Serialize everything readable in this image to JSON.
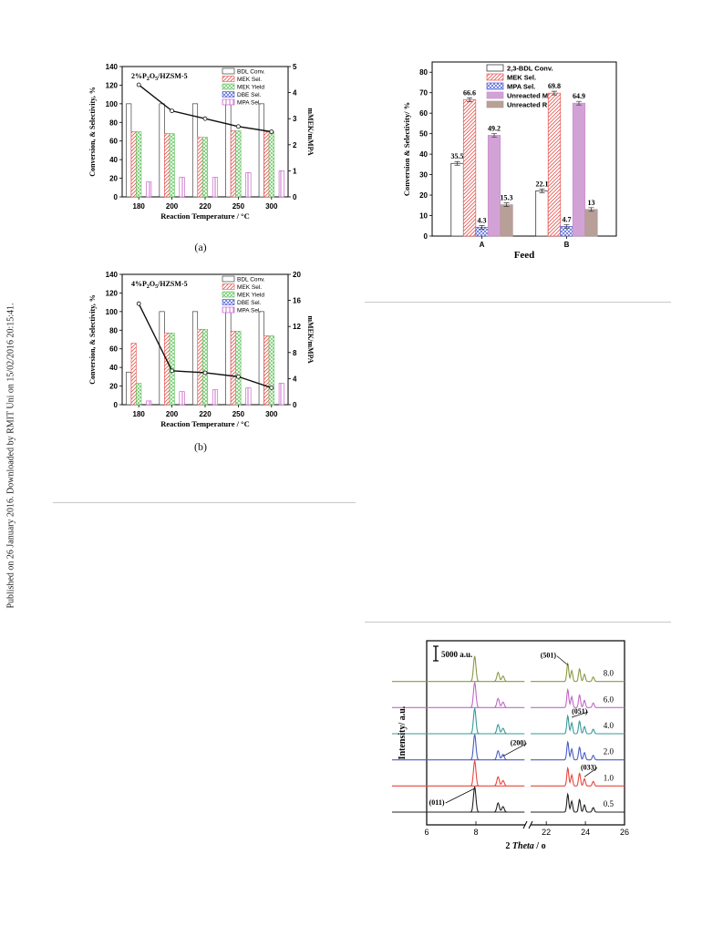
{
  "sidebar": {
    "text": "Published on 26 January 2016. Downloaded by RMIT Uni on 15/02/2016 20:15:41."
  },
  "colors": {
    "bdl": "#555555",
    "mek_sel": "#e8554e",
    "mek_yield": "#5fc25a",
    "dbe": "#4a5bd4",
    "mpa": "#c24fc2",
    "unreacted_m": "#c890cc",
    "unreacted_r": "#b09a94"
  },
  "captions": {
    "a": "(a)",
    "b": "(b)"
  },
  "chart_data": [
    {
      "type": "bar",
      "panel": "(a)",
      "annotation": "2%P2O5/HZSM-5",
      "categories": [
        "180",
        "200",
        "220",
        "250",
        "300"
      ],
      "xlabel": "Reaction Temperature / °C",
      "ylabel": "Conversion, & Selectivity, %",
      "y2label": "mMEK/mMPA",
      "ylim": [
        0,
        140
      ],
      "y2lim": [
        0,
        5
      ],
      "yticks": [
        0,
        20,
        40,
        60,
        80,
        100,
        120,
        140
      ],
      "y2ticks": [
        0,
        1,
        2,
        3,
        4,
        5
      ],
      "legend": [
        "BDL Conv.",
        "MEK Sel.",
        "MEK Yield",
        "DBE Sel.",
        "MPA Sel."
      ],
      "series": [
        {
          "name": "BDL Conv.",
          "values": [
            100,
            100,
            100,
            100,
            100
          ]
        },
        {
          "name": "MEK Sel.",
          "values": [
            70,
            68,
            64,
            71,
            70
          ]
        },
        {
          "name": "MEK Yield",
          "values": [
            70,
            68,
            64,
            71,
            70
          ]
        },
        {
          "name": "DBE Sel.",
          "values": [
            0,
            0,
            0,
            0,
            0
          ]
        },
        {
          "name": "MPA Sel.",
          "values": [
            16,
            21,
            21,
            26,
            28
          ]
        }
      ],
      "line": {
        "axis": "right",
        "values": [
          4.3,
          3.3,
          3.0,
          2.7,
          2.5
        ]
      }
    },
    {
      "type": "bar",
      "panel": "(b)",
      "annotation": "4%P2O5/HZSM-5",
      "categories": [
        "180",
        "200",
        "220",
        "250",
        "300"
      ],
      "xlabel": "Reaction Temperature / °C",
      "ylabel": "Conversion, & Selectivity, %",
      "y2label": "mMEK/mMPA",
      "ylim": [
        0,
        140
      ],
      "y2lim": [
        0,
        20
      ],
      "yticks": [
        0,
        20,
        40,
        60,
        80,
        100,
        120,
        140
      ],
      "y2ticks": [
        0,
        4,
        8,
        12,
        16,
        20
      ],
      "legend": [
        "BDL Conv.",
        "MEK Sel.",
        "MEK Yield",
        "DBE Sel.",
        "MPA Sel."
      ],
      "series": [
        {
          "name": "BDL Conv.",
          "values": [
            35,
            100,
            100,
            100,
            100
          ]
        },
        {
          "name": "MEK Sel.",
          "values": [
            66,
            77,
            81,
            79,
            74
          ]
        },
        {
          "name": "MEK Yield",
          "values": [
            23,
            77,
            81,
            79,
            74
          ]
        },
        {
          "name": "DBE Sel.",
          "values": [
            0,
            0,
            0,
            0,
            0
          ]
        },
        {
          "name": "MPA Sel.",
          "values": [
            4,
            14,
            16,
            18,
            23
          ]
        }
      ],
      "line": {
        "axis": "right",
        "values": [
          15.5,
          5.2,
          4.9,
          4.3,
          2.6
        ]
      }
    },
    {
      "type": "bar",
      "panel": "feed",
      "categories": [
        "A",
        "B"
      ],
      "xlabel": "Feed",
      "ylabel": "Conversion & Selectivity/ %",
      "ylim": [
        0,
        85
      ],
      "yticks": [
        0,
        10,
        20,
        30,
        40,
        50,
        60,
        70,
        80
      ],
      "legend": [
        "2,3-BDL Conv.",
        "MEK Sel.",
        "MPA Sel.",
        "Unreacted M",
        "Unreacted R"
      ],
      "series": [
        {
          "name": "2,3-BDL Conv.",
          "values": [
            35.5,
            22.1
          ]
        },
        {
          "name": "MEK Sel.",
          "values": [
            66.6,
            69.8
          ]
        },
        {
          "name": "MPA Sel.",
          "values": [
            4.3,
            4.7
          ]
        },
        {
          "name": "Unreacted M",
          "values": [
            49.2,
            64.9
          ]
        },
        {
          "name": "Unreacted R",
          "values": [
            15.3,
            13
          ]
        }
      ],
      "data_labels": [
        [
          "35.5",
          "66.6",
          "4.3",
          "49.2",
          "15.3"
        ],
        [
          "22.1",
          "69.8",
          "4.7",
          "64.9",
          "13"
        ]
      ]
    },
    {
      "type": "line",
      "panel": "xrd",
      "xlabel": "2 Theta / o",
      "ylabel": "Intensity/ a.u.",
      "scale_bar": "5000 a.u.",
      "xticks_left": [
        "6",
        "8"
      ],
      "xticks_right": [
        "22",
        "24",
        "26"
      ],
      "xlim_left": [
        6,
        10
      ],
      "xlim_right": [
        21.2,
        26
      ],
      "series": [
        {
          "name": "0.5"
        },
        {
          "name": "1.0"
        },
        {
          "name": "2.0"
        },
        {
          "name": "4.0"
        },
        {
          "name": "6.0"
        },
        {
          "name": "8.0"
        }
      ],
      "peaks_left": [
        7.95,
        8.9,
        9.1
      ],
      "peaks_right": [
        23.1,
        23.3,
        23.7,
        23.95,
        24.4
      ],
      "annotations": [
        {
          "label": "(011)",
          "series": "0.5"
        },
        {
          "label": "(033)",
          "series": "1.0"
        },
        {
          "label": "(200)",
          "series": "2.0"
        },
        {
          "label": "(051)",
          "series": "4.0"
        },
        {
          "label": "(501)",
          "series": "8.0"
        }
      ],
      "colors": [
        "#222222",
        "#e8483e",
        "#4a5ec4",
        "#3a9a98",
        "#c06ac4",
        "#8a9a48"
      ]
    }
  ]
}
